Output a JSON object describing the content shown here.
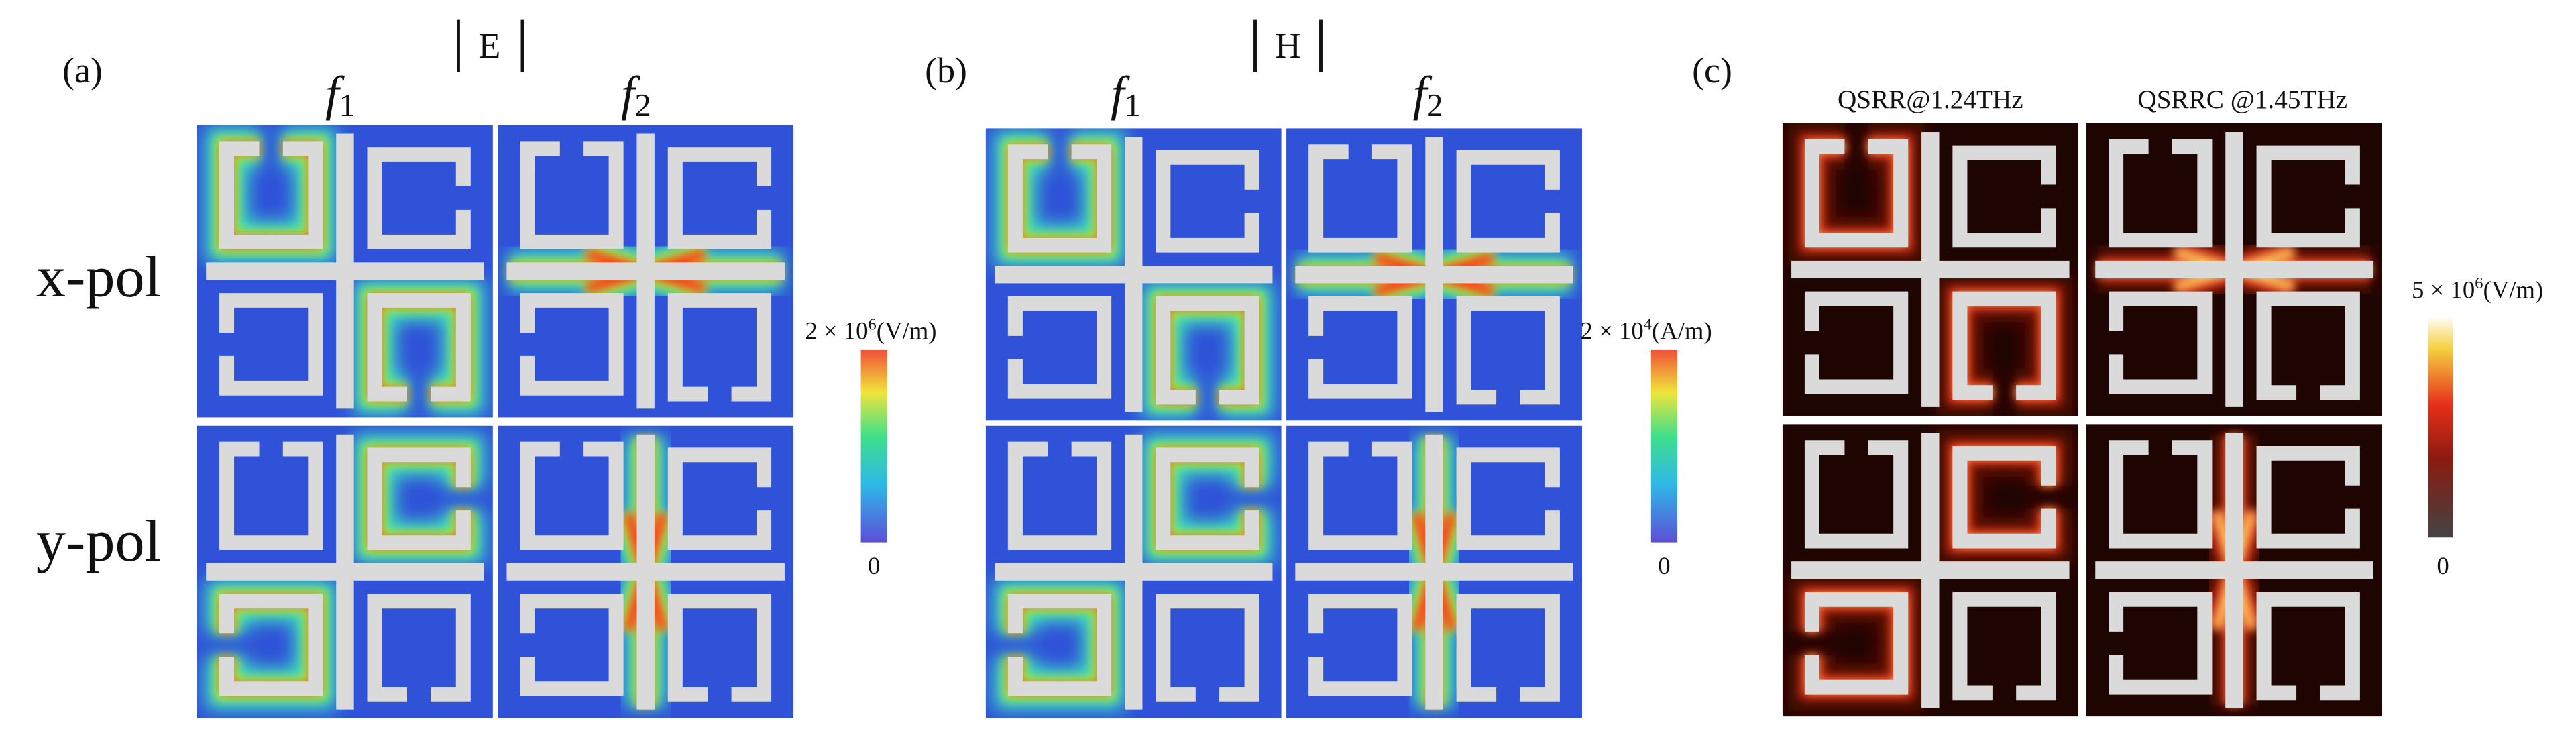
{
  "rows": [
    "x-pol",
    "y-pol"
  ],
  "panel_a": {
    "label": "(a)",
    "field": "E",
    "columns": [
      {
        "symbol": "f",
        "subscript": "1"
      },
      {
        "symbol": "f",
        "subscript": "2"
      }
    ],
    "colorbar": {
      "max_label": {
        "base": "2 × 10",
        "exponent": "6",
        "unit": "(V/m)"
      },
      "min_label": "0"
    }
  },
  "panel_b": {
    "label": "(b)",
    "field": "H",
    "columns": [
      {
        "symbol": "f",
        "subscript": "1"
      },
      {
        "symbol": "f",
        "subscript": "2"
      }
    ],
    "colorbar": {
      "max_label": {
        "base": "2 × 10",
        "exponent": "4",
        "unit": "(A/m)"
      },
      "min_label": "0"
    }
  },
  "panel_c": {
    "label": "(c)",
    "columns": [
      "QSRR@1.24THz",
      "QSRRC @1.45THz"
    ],
    "colorbar": {
      "max_label": {
        "base": "5 × 10",
        "exponent": "6",
        "unit": "(V/m)"
      },
      "min_label": "0"
    }
  }
}
